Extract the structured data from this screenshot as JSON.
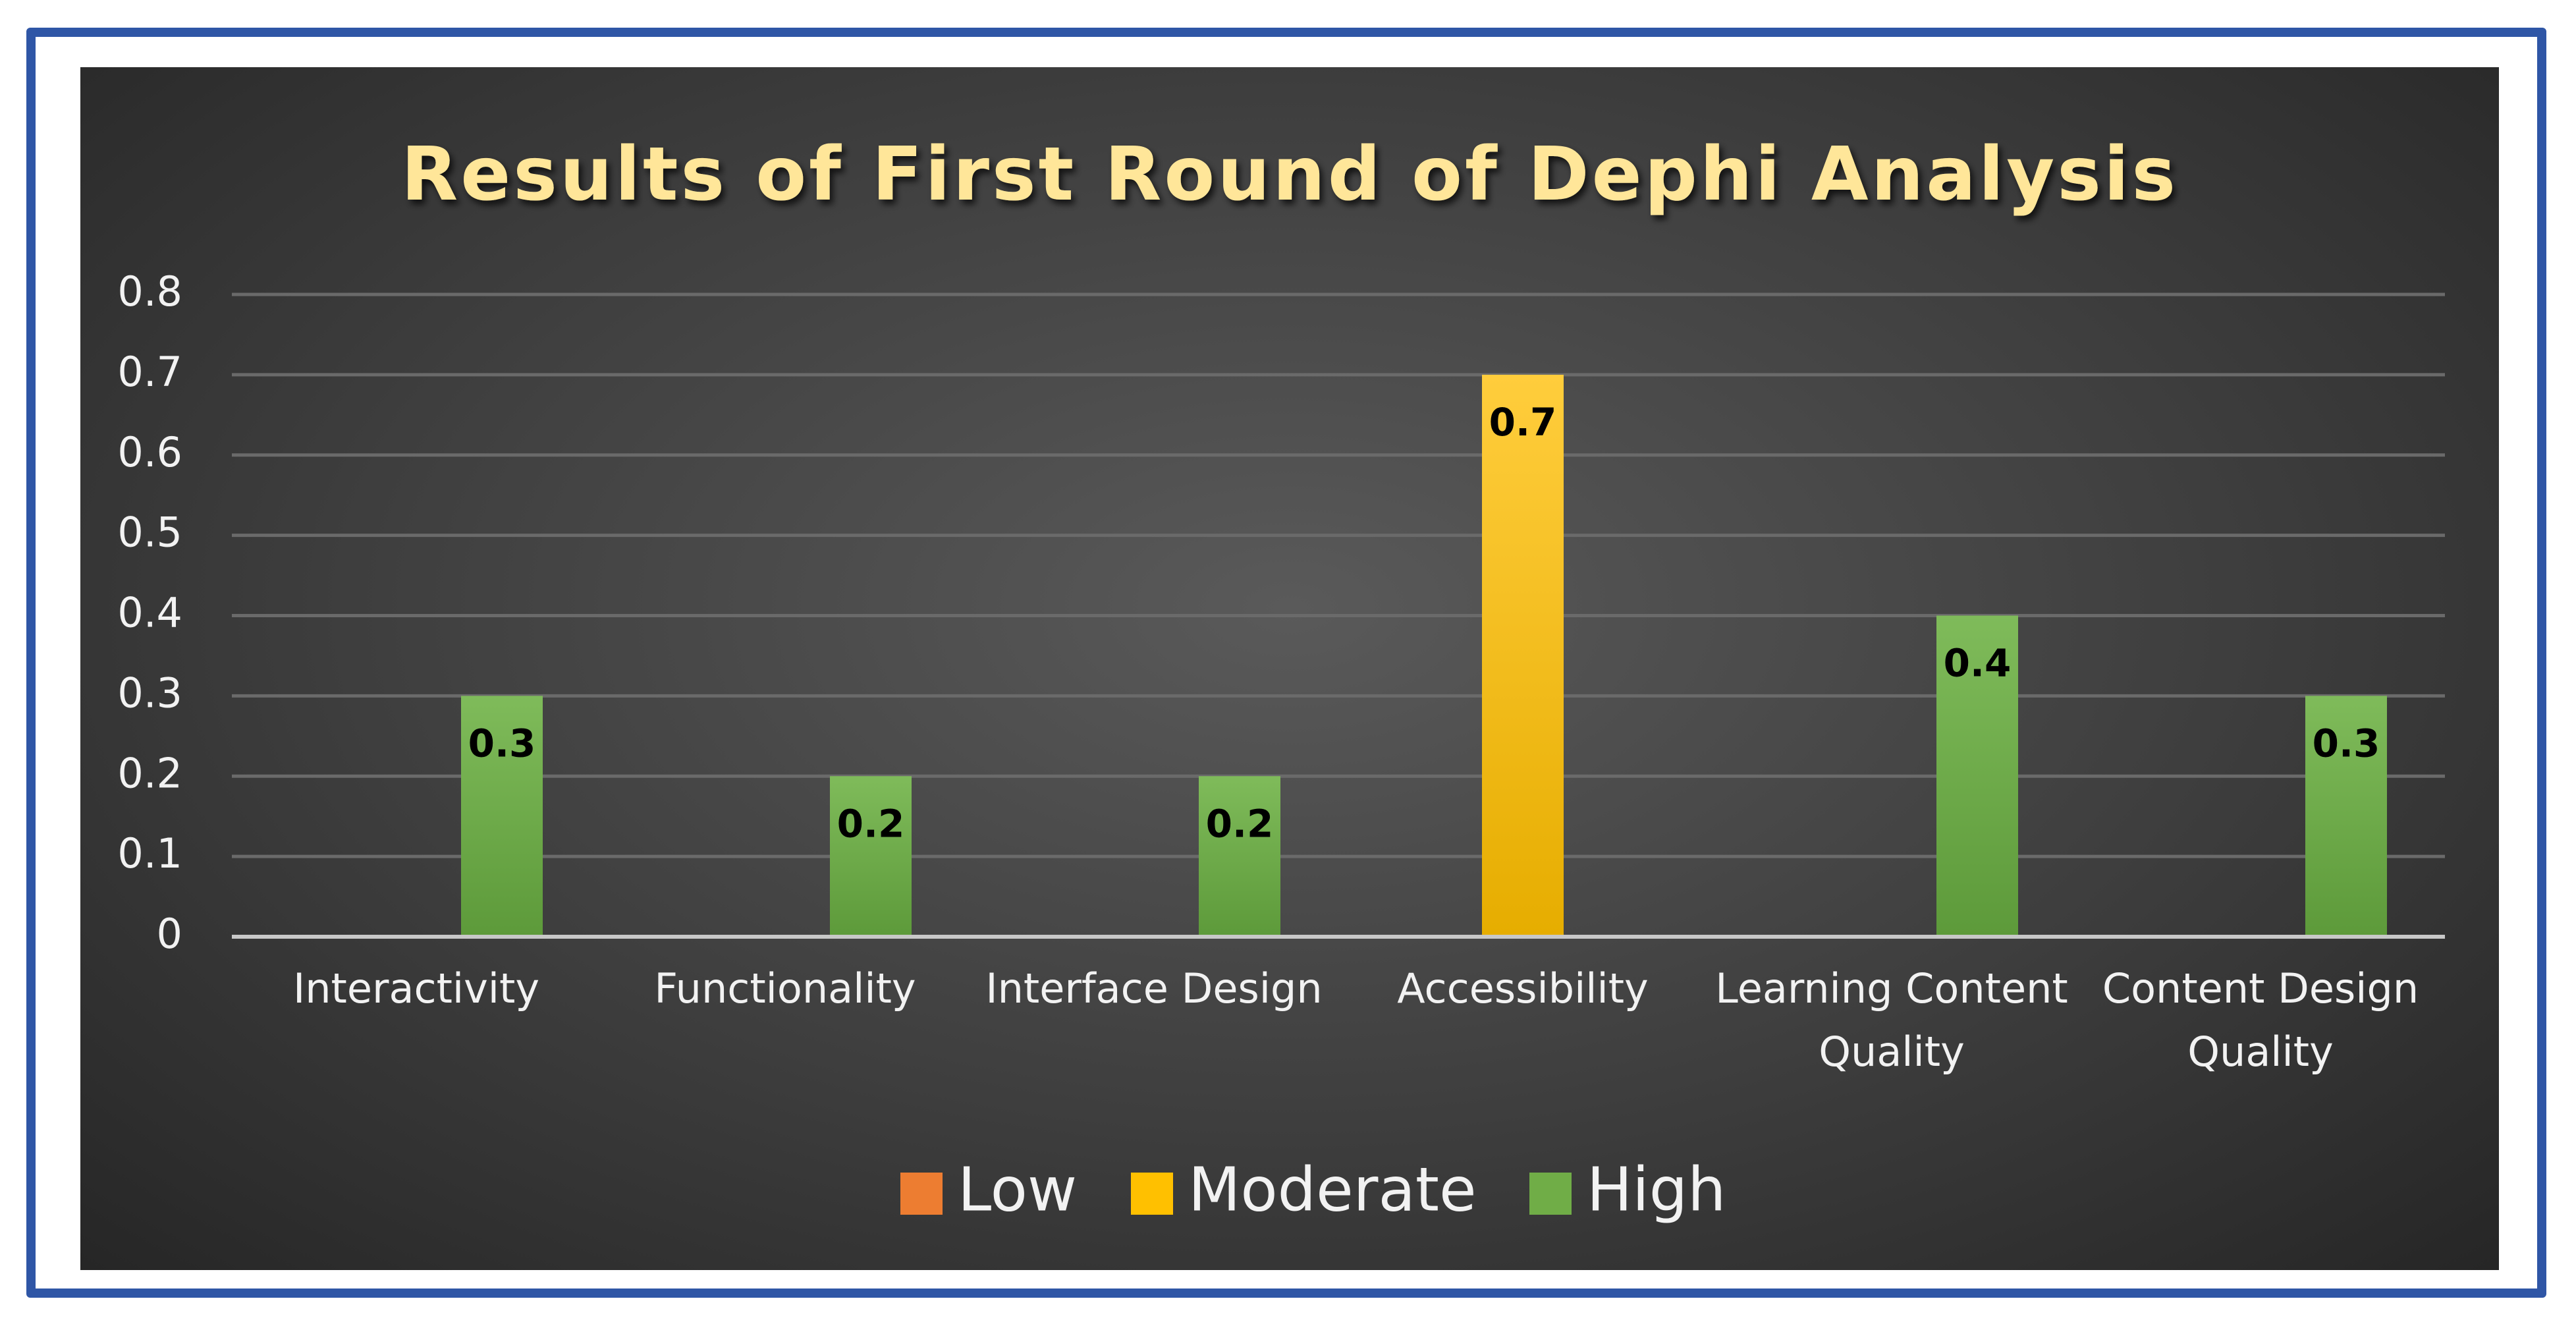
{
  "chart_data": {
    "type": "bar",
    "title": "Results of First Round of Dephi Analysis",
    "categories": [
      "Interactivity",
      "Functionality",
      "Interface Design",
      "Accessibility",
      "Learning Content Quality",
      "Content Design Quality"
    ],
    "category_lines": [
      [
        "Interactivity"
      ],
      [
        "Functionality"
      ],
      [
        "Interface Design"
      ],
      [
        "Accessibility"
      ],
      [
        "Learning Content",
        "Quality"
      ],
      [
        "Content Design",
        "Quality"
      ]
    ],
    "series": [
      {
        "name": "Low",
        "color": "#ed7d31",
        "values": [
          0,
          0,
          0,
          0,
          0,
          0
        ]
      },
      {
        "name": "Moderate",
        "color": "#ffc000",
        "values": [
          0,
          0,
          0,
          0.7,
          0,
          0
        ]
      },
      {
        "name": "High",
        "color": "#70ad47",
        "values": [
          0.3,
          0.2,
          0.2,
          0,
          0.4,
          0.3
        ]
      }
    ],
    "data_labels": [
      "0.3",
      "0.2",
      "0.2",
      "0.7",
      "0.4",
      "0.3"
    ],
    "ylim": [
      0,
      0.8
    ],
    "yticks": [
      "0",
      "0.1",
      "0.2",
      "0.3",
      "0.4",
      "0.5",
      "0.6",
      "0.7",
      "0.8"
    ],
    "xlabel": "",
    "ylabel": "",
    "legend_position": "bottom",
    "grid": true
  },
  "colors": {
    "title": "#ffe699",
    "frame": "#2f56a6",
    "axis_text": "#f2f2f2",
    "data_label": "#000000"
  }
}
